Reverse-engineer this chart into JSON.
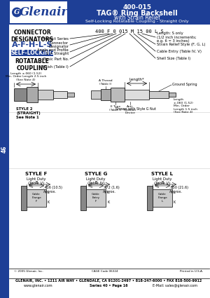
{
  "title_line1": "400-015",
  "title_line2": "TAG® Ring Backshell",
  "title_line3": "with Strain Relief",
  "title_line4": "Self-Locking Rotatable Coupling - Straight Only",
  "header_bg": "#1e3f96",
  "header_text_color": "#ffffff",
  "logo_text": "Glenair",
  "sidebar_text": "46",
  "connector_title": "CONNECTOR\nDESIGNATORS",
  "connector_designators": "A-F-H-L-S",
  "self_locking_text": "SELF-LOCKING",
  "rotatable_text": "ROTATABLE\nCOUPLING",
  "part_number_label": "400 F 0 015 M 15 00 L S",
  "pn_labels_left": [
    "Product Series",
    "Connector\nDesignator",
    "Angle and Profile\nS = Straight",
    "Basic Part No.",
    "Finish (Table I)"
  ],
  "pn_labels_right": [
    "Length: S only\n(1/2 inch increments;\ne.g. 6 = 3 inches)",
    "Strain Relief Style (F, G, L)",
    "Cable Entry (Table IV, V)",
    "Shell Size (Table I)"
  ],
  "footer_line1": "GLENAIR, INC. • 1211 AIR WAY • GLENDALE, CA 91201-2497 • 818-247-6000 • FAX 818-500-9912",
  "footer_line2": "www.glenair.com",
  "footer_line3": "Series 40 • Page 16",
  "footer_line4": "E-Mail: sales@glenair.com",
  "copyright": "© 2005 Glenair, Inc.",
  "cage_code": "CAGE Code 06324",
  "printed": "Printed in U.S.A.",
  "bg_color": "#ffffff"
}
